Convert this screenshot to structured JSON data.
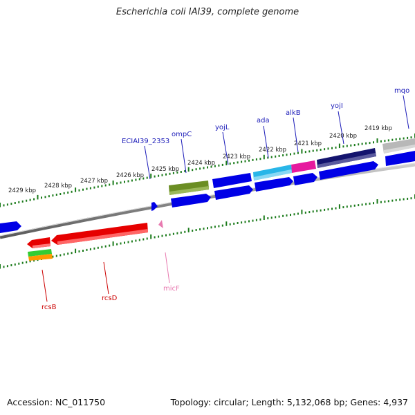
{
  "title": "Escherichia coli IAI39, complete genome",
  "accession": "Accession: NC_011750",
  "summary": "Topology: circular; Length: 5,132,068 bp; Genes: 4,937",
  "kbp_ticks": [
    "2419 kbp",
    "2420 kbp",
    "2421 kbp",
    "2422 kbp",
    "2423 kbp",
    "2424 kbp",
    "2425 kbp",
    "2426 kbp",
    "2427 kbp",
    "2428 kbp",
    "2429 kbp"
  ],
  "gene_labels": [
    {
      "name": "mqo",
      "color": "#1a1ab8"
    },
    {
      "name": "yojI",
      "color": "#1a1ab8"
    },
    {
      "name": "alkB",
      "color": "#1a1ab8"
    },
    {
      "name": "ada",
      "color": "#1a1ab8"
    },
    {
      "name": "yojL",
      "color": "#1a1ab8"
    },
    {
      "name": "ompC",
      "color": "#1a1ab8"
    },
    {
      "name": "ECIAI39_2353",
      "color": "#1a1ab8"
    },
    {
      "name": "rcsB",
      "color": "#cc0000"
    },
    {
      "name": "rcsD",
      "color": "#cc0000"
    },
    {
      "name": "micF",
      "color": "#e87ab0"
    }
  ],
  "colors": {
    "forward_cds": "#0000e6",
    "reverse_cds": "#e60000",
    "tick_green": "#1a7a1a",
    "backbone": "#8a8a8a",
    "cog_olive": "#6b8e23",
    "cog_cyan": "#29b6e8",
    "cog_magenta": "#e6199e",
    "cog_navy": "#14146e",
    "cog_gray": "#b8b8b8",
    "cog_green": "#33cc33",
    "cog_orange": "#ff9900",
    "ncrna_pink": "#e87ab0"
  }
}
